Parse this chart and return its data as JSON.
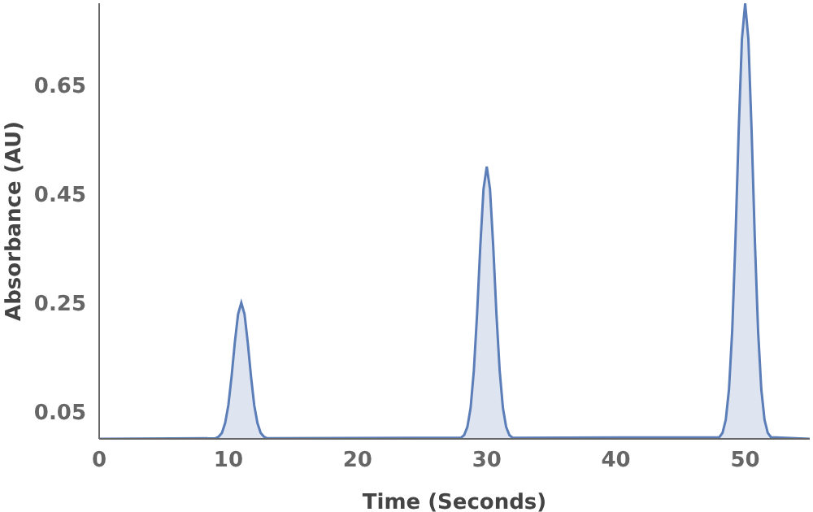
{
  "chart_data": {
    "type": "area",
    "xlabel": "Time  (Seconds)",
    "ylabel": "Absorbance  (AU)",
    "x": [
      0,
      9,
      9.25,
      9.5,
      9.75,
      10,
      10.25,
      10.5,
      10.75,
      11,
      11.25,
      11.5,
      11.75,
      12,
      12.25,
      12.5,
      12.75,
      13,
      28,
      28.25,
      28.5,
      28.75,
      29,
      29.25,
      29.5,
      29.75,
      30,
      30.25,
      30.5,
      30.75,
      31,
      31.25,
      31.5,
      31.75,
      32,
      48,
      48.25,
      48.5,
      48.75,
      49,
      49.25,
      49.5,
      49.75,
      50,
      50.25,
      50.5,
      50.75,
      51,
      51.25,
      51.5,
      51.75,
      52,
      55
    ],
    "series": [
      {
        "color": "#5b7db8",
        "values": [
          0,
          0.001,
          0.004,
          0.011,
          0.029,
          0.062,
          0.115,
          0.177,
          0.229,
          0.25,
          0.229,
          0.177,
          0.115,
          0.062,
          0.029,
          0.011,
          0.004,
          0.001,
          0.002,
          0.007,
          0.022,
          0.057,
          0.125,
          0.229,
          0.354,
          0.459,
          0.5,
          0.459,
          0.354,
          0.229,
          0.125,
          0.057,
          0.022,
          0.007,
          0.002,
          0.003,
          0.011,
          0.035,
          0.091,
          0.199,
          0.366,
          0.566,
          0.734,
          0.8,
          0.734,
          0.566,
          0.366,
          0.199,
          0.091,
          0.035,
          0.011,
          0.003,
          0
        ]
      }
    ],
    "xlim": [
      0,
      55
    ],
    "xticks": [
      0,
      10,
      20,
      30,
      40,
      50
    ],
    "ylim": [
      0,
      0.8
    ],
    "yticks": [
      0.05,
      0.25,
      0.45,
      0.65
    ],
    "grid": false,
    "legend": false
  }
}
